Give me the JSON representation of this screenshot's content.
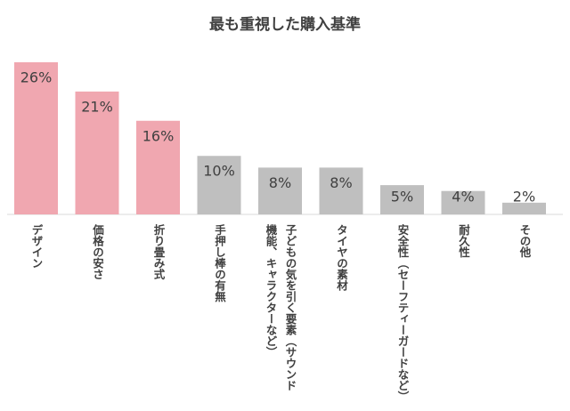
{
  "chart_data": {
    "type": "bar",
    "title": "最も重視した購入基準",
    "categories": [
      "デザイン",
      "価格の安さ",
      "折り畳み式",
      "手押し棒の有無",
      "子どもの気を引く要素（サウンド機能、キャラクターなど）",
      "タイヤの素材",
      "安全性（セーフティーガードなど）",
      "耐久性",
      "その他"
    ],
    "values": [
      26,
      21,
      16,
      10,
      8,
      8,
      5,
      4,
      2
    ],
    "value_labels": [
      "26%",
      "21%",
      "16%",
      "10%",
      "8%",
      "8%",
      "5%",
      "4%",
      "2%"
    ],
    "colors": [
      "#f0a7b0",
      "#f0a7b0",
      "#f0a7b0",
      "#bfbfbf",
      "#bfbfbf",
      "#bfbfbf",
      "#bfbfbf",
      "#bfbfbf",
      "#bfbfbf"
    ]
  }
}
